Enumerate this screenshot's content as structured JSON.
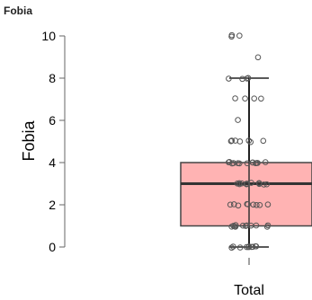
{
  "chart_data": {
    "type": "box",
    "title": "Fobia",
    "ylabel": "Fobia",
    "categories": [
      "Total"
    ],
    "ylim": [
      0,
      10
    ],
    "yticks": [
      0,
      2,
      4,
      6,
      8,
      10
    ],
    "grid": false,
    "box": {
      "min": 0,
      "q1": 1,
      "median": 3,
      "q3": 4,
      "max": 8
    },
    "points": [
      0,
      0,
      0,
      0,
      0,
      0,
      0,
      0,
      0,
      0,
      1,
      1,
      1,
      1,
      1,
      1,
      1,
      1,
      1,
      1,
      1,
      1,
      2,
      2,
      2,
      2,
      2,
      2,
      2,
      2,
      2,
      3,
      3,
      3,
      3,
      3,
      3,
      3,
      3,
      3,
      3,
      3,
      3,
      4,
      4,
      4,
      4,
      4,
      4,
      4,
      4,
      4,
      4,
      4,
      4,
      4,
      5,
      5,
      5,
      5,
      5,
      5,
      5,
      6,
      7,
      7,
      7,
      7,
      8,
      8,
      8,
      8,
      9,
      10,
      10,
      10
    ],
    "colors": {
      "box_fill": "#ffb3b3",
      "box_stroke": "#444444",
      "points": "#555555"
    }
  }
}
